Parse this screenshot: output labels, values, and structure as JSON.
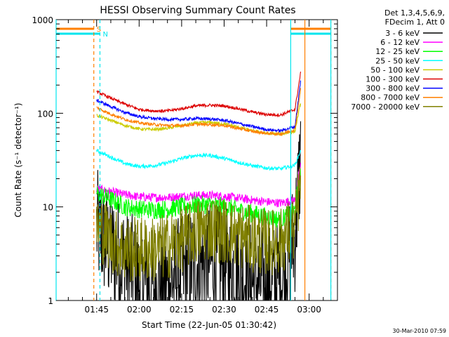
{
  "chart_data": {
    "type": "line",
    "title": "HESSI Observing Summary Count Rates",
    "xlabel": "Start Time (22-Jun-05 01:30:42)",
    "ylabel": "Count Rate (s⁻¹ detector⁻¹)",
    "yscale": "log",
    "xlim": [
      "01:30:42",
      "03:10:00"
    ],
    "ylim": [
      1,
      1000
    ],
    "x_ticks": [
      "01:45",
      "02:00",
      "02:15",
      "02:30",
      "02:45",
      "03:00"
    ],
    "y_ticks": [
      "1",
      "10",
      "100",
      "1000"
    ],
    "legend_header": [
      "Det 1,3,4,5,6,9,",
      "FDecim 1, Att 0"
    ],
    "legend_position": "outside-right",
    "footer": "30-Mar-2010 07:59",
    "flags": [
      {
        "label": "S",
        "color": "#ff7f00",
        "start": "01:30:42",
        "end": "01:44:00"
      },
      {
        "label": "N",
        "color": "#00e5ee",
        "start": "01:30:42",
        "end": "01:46:10"
      }
    ],
    "vertical_lines": [
      {
        "time": "01:30:42",
        "color": "#00e5ee",
        "style": "solid"
      },
      {
        "time": "01:44:00",
        "color": "#ff7f00",
        "style": "dashed"
      },
      {
        "time": "01:46:10",
        "color": "#00e5ee",
        "style": "dashed"
      },
      {
        "time": "02:53:30",
        "color": "#00e5ee",
        "style": "solid"
      },
      {
        "time": "02:58:30",
        "color": "#ff7f00",
        "style": "solid"
      },
      {
        "time": "03:07:40",
        "color": "#ff7f00",
        "style": "dashed"
      },
      {
        "time": "03:07:40",
        "color": "#00e5ee",
        "style": "solid"
      }
    ],
    "x": [
      "01:45",
      "01:50",
      "01:55",
      "02:00",
      "02:05",
      "02:10",
      "02:15",
      "02:20",
      "02:25",
      "02:30",
      "02:35",
      "02:40",
      "02:45",
      "02:50",
      "02:55",
      "02:57"
    ],
    "series": [
      {
        "name": "3 - 6 keV",
        "color": "#000000",
        "noise": 1.6,
        "values": [
          6,
          3.5,
          2.5,
          1.6,
          1.4,
          1.5,
          2.0,
          2.5,
          2.6,
          2.4,
          2.0,
          1.6,
          1.5,
          1.7,
          5,
          35
        ]
      },
      {
        "name": "6 - 12 keV",
        "color": "#ff00ff",
        "noise": 0.12,
        "values": [
          15.5,
          14.5,
          13.5,
          12.8,
          12.6,
          12.6,
          13.0,
          13.3,
          13.3,
          13.0,
          12.4,
          11.8,
          11.3,
          11.0,
          11.8,
          28
        ]
      },
      {
        "name": "12 - 25 keV",
        "color": "#00ff00",
        "noise": 0.25,
        "values": [
          14,
          12,
          10,
          9.5,
          9.3,
          9.5,
          10,
          10.5,
          10.5,
          10,
          9.2,
          8.5,
          7.8,
          7.3,
          9,
          24
        ]
      },
      {
        "name": "25 - 50 keV",
        "color": "#00ffff",
        "noise": 0.05,
        "values": [
          40,
          34,
          29,
          27,
          27.5,
          29.5,
          33,
          35.5,
          35.5,
          33,
          30,
          27.5,
          26,
          25.5,
          28,
          40
        ]
      },
      {
        "name": "50 - 100 keV",
        "color": "#cccc00",
        "noise": 0.04,
        "values": [
          95,
          84,
          74,
          68,
          67,
          69,
          74,
          79,
          80,
          77,
          71,
          65,
          61,
          60,
          64,
          130
        ]
      },
      {
        "name": "100 - 300 keV",
        "color": "#dd0000",
        "noise": 0.04,
        "values": [
          170,
          145,
          125,
          110,
          106,
          106,
          112,
          120,
          122,
          120,
          112,
          103,
          97,
          96,
          110,
          270
        ]
      },
      {
        "name": "300 - 800 keV",
        "color": "#0000ff",
        "noise": 0.04,
        "values": [
          138,
          118,
          102,
          92,
          88,
          86,
          86,
          88,
          87,
          84,
          78,
          72,
          67,
          65,
          72,
          220
        ]
      },
      {
        "name": "800 - 7000 keV",
        "color": "#ff7f00",
        "noise": 0.04,
        "values": [
          115,
          98,
          86,
          79,
          76,
          74,
          74,
          76,
          76,
          74,
          69,
          64,
          61,
          60,
          67,
          180
        ]
      },
      {
        "name": "7000 - 20000 keV",
        "color": "#808000",
        "noise": 0.9,
        "values": [
          6.5,
          4.5,
          3.5,
          3.5,
          3.5,
          3.8,
          4.5,
          5.5,
          6,
          5.5,
          5,
          4.5,
          4.2,
          4.3,
          6,
          18
        ]
      }
    ]
  }
}
